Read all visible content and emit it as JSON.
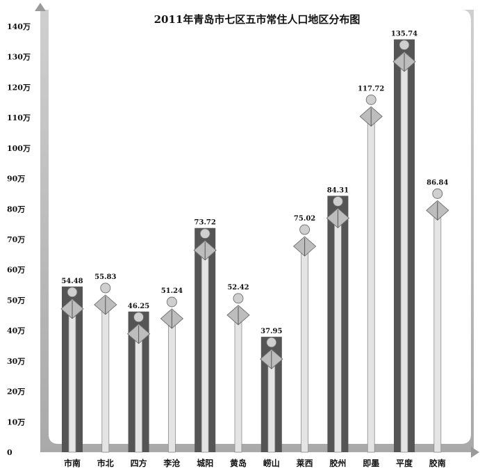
{
  "chart_data": {
    "type": "bar",
    "title": "2011年青岛市七区五市常住人口地区分布图",
    "categories": [
      "市南",
      "市北",
      "四方",
      "李沧",
      "城阳",
      "黄岛",
      "崂山",
      "莱西",
      "胶州",
      "即墨",
      "平度",
      "胶南"
    ],
    "values": [
      54.48,
      55.83,
      46.25,
      51.24,
      73.72,
      52.42,
      37.95,
      75.02,
      84.31,
      117.72,
      135.74,
      86.84
    ],
    "value_labels": [
      "54.48",
      "55.83",
      "46.25",
      "51.24",
      "73.72",
      "52.42",
      "37.95",
      "75.02",
      "84.31",
      "117.72",
      "135.74",
      "86.84"
    ],
    "y_ticks": [
      {
        "value": 0,
        "label": "0"
      },
      {
        "value": 10,
        "label": "10万"
      },
      {
        "value": 20,
        "label": "20万"
      },
      {
        "value": 30,
        "label": "30万"
      },
      {
        "value": 40,
        "label": "40万"
      },
      {
        "value": 50,
        "label": "50万"
      },
      {
        "value": 60,
        "label": "60万"
      },
      {
        "value": 70,
        "label": "70万"
      },
      {
        "value": 80,
        "label": "80万"
      },
      {
        "value": 90,
        "label": "90万"
      },
      {
        "value": 100,
        "label": "100万"
      },
      {
        "value": 110,
        "label": "110万"
      },
      {
        "value": 120,
        "label": "120万"
      },
      {
        "value": 130,
        "label": "130万"
      },
      {
        "value": 140,
        "label": "140万"
      }
    ],
    "ylim": [
      0,
      140
    ],
    "xlabel": "",
    "ylabel": "",
    "grid": false,
    "legend": "none",
    "colors": {
      "bar_dark": "#555555",
      "bar_light": "#d9d9d9",
      "figure": "#bdbdbd",
      "frame": "#b5b5b5"
    }
  }
}
